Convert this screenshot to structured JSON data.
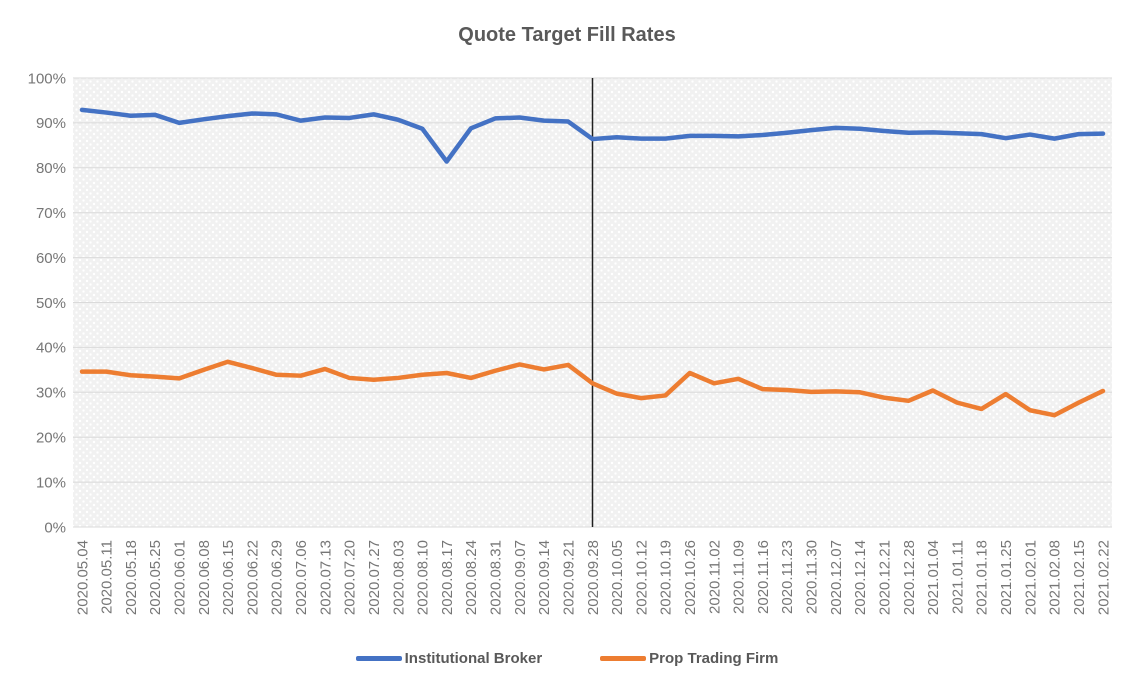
{
  "title": "Quote Target Fill Rates",
  "colors": {
    "series_blue": "#4472C4",
    "series_orange": "#ED7D31",
    "gridline": "#DADADA",
    "plot_background": "#F1F1F1",
    "axis_text": "#767676",
    "title_text": "#595959",
    "annotation_line": "#1F1F1F"
  },
  "chart_data": {
    "type": "line",
    "title": "Quote Target Fill Rates",
    "xlabel": "",
    "ylabel": "",
    "ylim": [
      0,
      100
    ],
    "ytick_step": 10,
    "yticks": [
      "0%",
      "10%",
      "20%",
      "30%",
      "40%",
      "50%",
      "60%",
      "70%",
      "80%",
      "90%",
      "100%"
    ],
    "grid": "horizontal",
    "legend_position": "bottom",
    "plot_area_style": "light gray with white dot pattern",
    "categories": [
      "2020.05.04",
      "2020.05.11",
      "2020.05.18",
      "2020.05.25",
      "2020.06.01",
      "2020.06.08",
      "2020.06.15",
      "2020.06.22",
      "2020.06.29",
      "2020.07.06",
      "2020.07.13",
      "2020.07.20",
      "2020.07.27",
      "2020.08.03",
      "2020.08.10",
      "2020.08.17",
      "2020.08.24",
      "2020.08.31",
      "2020.09.07",
      "2020.09.14",
      "2020.09.21",
      "2020.09.28",
      "2020.10.05",
      "2020.10.12",
      "2020.10.19",
      "2020.10.26",
      "2020.11.02",
      "2020.11.09",
      "2020.11.16",
      "2020.11.23",
      "2020.11.30",
      "2020.12.07",
      "2020.12.14",
      "2020.12.21",
      "2020.12.28",
      "2021.01.04",
      "2021.01.11",
      "2021.01.18",
      "2021.01.25",
      "2021.02.01",
      "2021.02.08",
      "2021.02.15",
      "2021.02.22"
    ],
    "series": [
      {
        "name": "Institutional Broker",
        "color": "#4472C4",
        "values": [
          92.9,
          92.3,
          91.6,
          91.8,
          90.0,
          90.8,
          91.5,
          92.1,
          91.9,
          90.5,
          91.2,
          91.1,
          91.9,
          90.7,
          88.7,
          81.4,
          88.8,
          91.0,
          91.2,
          90.5,
          90.3,
          86.4,
          86.8,
          86.5,
          86.5,
          87.1,
          87.1,
          87.0,
          87.3,
          87.8,
          88.4,
          88.9,
          88.7,
          88.2,
          87.8,
          87.9,
          87.7,
          87.5,
          86.6,
          87.4,
          86.5,
          87.5,
          87.6
        ]
      },
      {
        "name": "Prop Trading Firm",
        "color": "#ED7D31",
        "values": [
          34.6,
          34.6,
          33.8,
          33.5,
          33.1,
          35.0,
          36.8,
          35.4,
          33.9,
          33.7,
          35.2,
          33.2,
          32.8,
          33.2,
          33.9,
          34.3,
          33.2,
          34.8,
          36.2,
          35.1,
          36.1,
          32.0,
          29.7,
          28.7,
          29.3,
          34.3,
          32.0,
          33.0,
          30.7,
          30.5,
          30.1,
          30.2,
          30.0,
          28.8,
          28.1,
          30.4,
          27.7,
          26.3,
          29.6,
          26.0,
          24.9,
          27.7,
          30.3
        ]
      }
    ],
    "annotations": [
      {
        "type": "vline",
        "at": "2020.09.28",
        "color": "#1F1F1F"
      }
    ]
  },
  "legend": {
    "items": [
      {
        "label": "Institutional Broker",
        "color": "#4472C4"
      },
      {
        "label": "Prop Trading Firm",
        "color": "#ED7D31"
      }
    ]
  }
}
